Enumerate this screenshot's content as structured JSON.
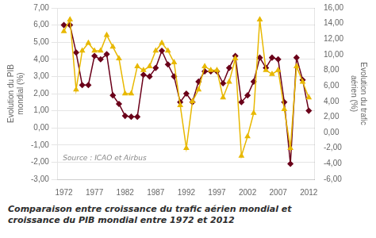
{
  "chart_data": {
    "type": "line",
    "caption": "Comparaison entre croissance du trafic aérien mondial et\ncroissance du PIB mondial entre 1972 et 2012",
    "annotations": [
      {
        "text": "Source : ICAO et Airbus"
      }
    ],
    "x": [
      1972,
      1973,
      1974,
      1975,
      1976,
      1977,
      1978,
      1979,
      1980,
      1981,
      1982,
      1983,
      1984,
      1985,
      1986,
      1987,
      1988,
      1989,
      1990,
      1991,
      1992,
      1993,
      1994,
      1995,
      1996,
      1997,
      1998,
      1999,
      2000,
      2001,
      2002,
      2003,
      2004,
      2005,
      2006,
      2007,
      2008,
      2009,
      2010,
      2011,
      2012
    ],
    "xlim": [
      1971,
      2013
    ],
    "xticks": [
      1972,
      1977,
      1982,
      1987,
      1992,
      1997,
      2002,
      2007,
      2012
    ],
    "ylabel": "Evolution du PIB\nmondial (%)",
    "y2label": "Evolution du trafic\naérien (%)",
    "ylim": [
      -3.0,
      7.0
    ],
    "yticks": [
      {
        "value": -3.0,
        "label": "-3,00"
      },
      {
        "value": -2.0,
        "label": "-2,00"
      },
      {
        "value": -1.0,
        "label": "-1,00"
      },
      {
        "value": 0.0,
        "label": "0,00"
      },
      {
        "value": 1.0,
        "label": "1,00"
      },
      {
        "value": 2.0,
        "label": "2,00"
      },
      {
        "value": 3.0,
        "label": "3,00"
      },
      {
        "value": 4.0,
        "label": "4,00"
      },
      {
        "value": 5.0,
        "label": "5,00"
      },
      {
        "value": 6.0,
        "label": "6,00"
      },
      {
        "value": 7.0,
        "label": "7,00"
      }
    ],
    "y2lim": [
      -6.0,
      16.0
    ],
    "y2ticks": [
      {
        "value": -6.0,
        "label": "-6,00"
      },
      {
        "value": -4.0,
        "label": "-4,00"
      },
      {
        "value": -2.0,
        "label": "-2,00"
      },
      {
        "value": 0.0,
        "label": "0,00"
      },
      {
        "value": 2.0,
        "label": "2,00"
      },
      {
        "value": 4.0,
        "label": "4,00"
      },
      {
        "value": 6.0,
        "label": "6,00"
      },
      {
        "value": 8.0,
        "label": "8,00"
      },
      {
        "value": 10.0,
        "label": "10,00"
      },
      {
        "value": 12.0,
        "label": "12,00"
      },
      {
        "value": 14.0,
        "label": "14,00"
      },
      {
        "value": 16.0,
        "label": "16,00"
      }
    ],
    "grid": "y",
    "series": [
      {
        "color": "#E8B800",
        "marker": "triangle",
        "axis": "y2",
        "values": [
          13.0,
          14.5,
          5.5,
          10.5,
          11.5,
          10.5,
          10.5,
          12.5,
          11.0,
          9.5,
          5.0,
          5.0,
          8.5,
          8.0,
          8.5,
          10.5,
          11.5,
          10.5,
          9.0,
          3.5,
          -2.0,
          4.0,
          5.5,
          8.5,
          8.0,
          8.0,
          4.5,
          6.5,
          9.5,
          -3.0,
          -0.5,
          2.5,
          14.5,
          8.0,
          7.5,
          8.0,
          3.0,
          -2.0,
          8.5,
          6.5,
          4.5
        ]
      },
      {
        "color": "#6B001A",
        "marker": "diamond",
        "axis": "y",
        "values": [
          6.0,
          6.0,
          4.4,
          2.5,
          2.5,
          4.2,
          4.0,
          4.3,
          1.9,
          1.4,
          0.7,
          0.65,
          0.65,
          3.1,
          3.0,
          3.5,
          4.5,
          3.7,
          3.0,
          1.5,
          2.0,
          1.5,
          2.7,
          3.3,
          3.3,
          3.3,
          2.6,
          3.5,
          4.2,
          1.5,
          1.9,
          2.7,
          4.1,
          3.5,
          4.1,
          4.0,
          1.5,
          -2.1,
          4.1,
          2.8,
          1.0
        ]
      }
    ]
  }
}
